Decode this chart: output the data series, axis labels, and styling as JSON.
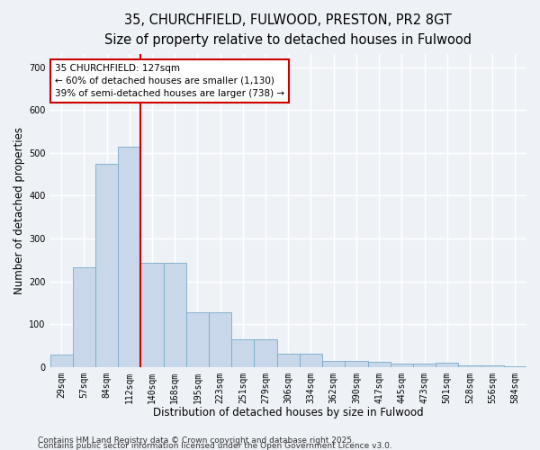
{
  "title1": "35, CHURCHFIELD, FULWOOD, PRESTON, PR2 8GT",
  "title2": "Size of property relative to detached houses in Fulwood",
  "xlabel": "Distribution of detached houses by size in Fulwood",
  "ylabel": "Number of detached properties",
  "categories": [
    "29sqm",
    "57sqm",
    "84sqm",
    "112sqm",
    "140sqm",
    "168sqm",
    "195sqm",
    "223sqm",
    "251sqm",
    "279sqm",
    "306sqm",
    "334sqm",
    "362sqm",
    "390sqm",
    "417sqm",
    "445sqm",
    "473sqm",
    "501sqm",
    "528sqm",
    "556sqm",
    "584sqm"
  ],
  "values": [
    28,
    233,
    475,
    515,
    243,
    243,
    128,
    128,
    65,
    65,
    30,
    30,
    15,
    15,
    12,
    8,
    8,
    10,
    3,
    3,
    2
  ],
  "bar_color": "#c8d8ea",
  "bar_edge_color": "#7aaac8",
  "vline_color": "#cc0000",
  "vline_pos": 3.5,
  "annotation_title": "35 CHURCHFIELD: 127sqm",
  "annotation_line1": "← 60% of detached houses are smaller (1,130)",
  "annotation_line2": "39% of semi-detached houses are larger (738) →",
  "annotation_box_color": "#ffffff",
  "annotation_box_edge": "#cc0000",
  "footer1": "Contains HM Land Registry data © Crown copyright and database right 2025.",
  "footer2": "Contains public sector information licensed under the Open Government Licence v3.0.",
  "bg_color": "#eef2f7",
  "plot_bg_color": "#eef2f7",
  "ylim": [
    0,
    730
  ],
  "yticks": [
    0,
    100,
    200,
    300,
    400,
    500,
    600,
    700
  ],
  "grid_color": "#ffffff",
  "title_fontsize": 10.5,
  "subtitle_fontsize": 9.5,
  "axis_label_fontsize": 8.5,
  "tick_fontsize": 7,
  "footer_fontsize": 6.5
}
